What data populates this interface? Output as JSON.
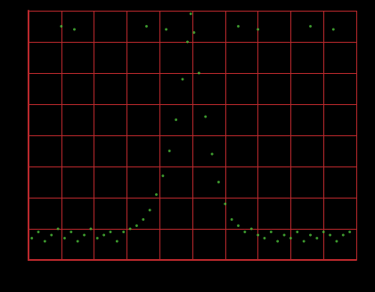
{
  "chart_data": {
    "type": "scatter",
    "x": [
      0.1,
      0.3,
      0.5,
      0.7,
      0.9,
      1.1,
      1.3,
      1.5,
      1.7,
      1.9,
      2.1,
      2.3,
      2.5,
      2.7,
      2.9,
      3.1,
      3.3,
      3.5,
      3.7,
      3.9,
      4.1,
      4.3,
      4.5,
      4.7,
      4.85,
      4.95,
      5.05,
      5.2,
      5.4,
      5.6,
      5.8,
      6.0,
      6.2,
      6.4,
      6.6,
      6.8,
      7.0,
      7.2,
      7.4,
      7.6,
      7.8,
      8.0,
      8.2,
      8.4,
      8.6,
      8.8,
      9.0,
      9.2,
      9.4,
      9.6,
      9.8,
      1.0,
      1.4,
      3.6,
      4.2,
      6.4,
      7.0,
      8.6,
      9.3
    ],
    "values": [
      0.7,
      0.9,
      0.6,
      0.8,
      1.0,
      0.7,
      0.9,
      0.6,
      0.8,
      1.0,
      0.7,
      0.8,
      0.9,
      0.6,
      0.9,
      1.0,
      1.1,
      1.3,
      1.6,
      2.1,
      2.7,
      3.5,
      4.5,
      5.8,
      7.0,
      7.9,
      7.3,
      6.0,
      4.6,
      3.4,
      2.5,
      1.8,
      1.3,
      1.1,
      0.9,
      1.0,
      0.8,
      0.7,
      0.9,
      0.6,
      0.8,
      0.7,
      0.9,
      0.6,
      0.8,
      0.7,
      0.9,
      0.8,
      0.6,
      0.8,
      0.9,
      7.5,
      7.4,
      7.5,
      7.4,
      7.5,
      7.4,
      7.5,
      7.4
    ],
    "color": "#4cc03a",
    "xlim": [
      0,
      10
    ],
    "ylim": [
      0,
      8
    ],
    "xticks": [
      0,
      1,
      2,
      3,
      4,
      5,
      6,
      7,
      8,
      9,
      10
    ],
    "yticks": [
      0,
      1,
      2,
      3,
      4,
      5,
      6,
      7,
      8
    ],
    "grid": true,
    "tick_labels": false
  }
}
